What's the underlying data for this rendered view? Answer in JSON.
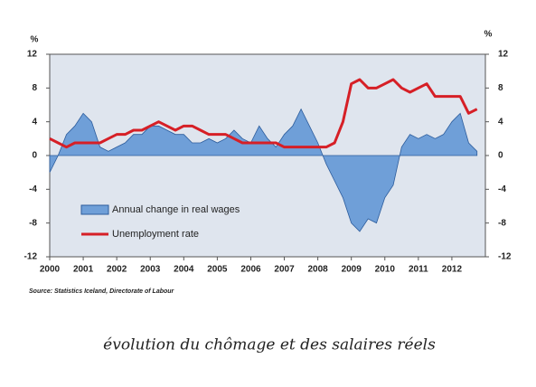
{
  "chart_data": {
    "type": "line",
    "ylabel": "%",
    "y2label": "%",
    "xlim": [
      2000,
      2013
    ],
    "xticks": [
      2000,
      2001,
      2002,
      2003,
      2004,
      2005,
      2006,
      2007,
      2008,
      2009,
      2010,
      2011,
      2012
    ],
    "ylim": [
      -12,
      12
    ],
    "yticks": [
      -12,
      -8,
      -4,
      0,
      4,
      8,
      12
    ],
    "y2lim": [
      -12,
      12
    ],
    "y2ticks": [
      -12,
      -8,
      -4,
      0,
      4,
      8,
      12
    ],
    "legend": "lower left",
    "x": [
      2000,
      2000.25,
      2000.5,
      2000.75,
      2001,
      2001.25,
      2001.5,
      2001.75,
      2002,
      2002.25,
      2002.5,
      2002.75,
      2003,
      2003.25,
      2003.5,
      2003.75,
      2004,
      2004.25,
      2004.5,
      2004.75,
      2005,
      2005.25,
      2005.5,
      2005.75,
      2006,
      2006.25,
      2006.5,
      2006.75,
      2007,
      2007.25,
      2007.5,
      2007.75,
      2008,
      2008.25,
      2008.5,
      2008.75,
      2009,
      2009.25,
      2009.5,
      2009.75,
      2010,
      2010.25,
      2010.5,
      2010.75,
      2011,
      2011.25,
      2011.5,
      2011.75,
      2012,
      2012.25,
      2012.5,
      2012.75
    ],
    "series": [
      {
        "name": "Annual change in real wages",
        "type": "area",
        "color": "#6f9fd8",
        "edge": "#2c5c9c",
        "values": [
          -2,
          0,
          2.5,
          3.5,
          5,
          4,
          1,
          0.5,
          1,
          1.5,
          2.5,
          2.5,
          3.5,
          3.5,
          3,
          2.5,
          2.5,
          1.5,
          1.5,
          2,
          1.5,
          2,
          3,
          2,
          1.5,
          3.5,
          2,
          1,
          2.5,
          3.5,
          5.5,
          3.5,
          1.5,
          -1,
          -3,
          -5,
          -8,
          -9,
          -7.5,
          -8,
          -5,
          -3.5,
          1,
          2.5,
          2,
          2.5,
          2,
          2.5,
          4,
          5,
          1.5,
          0.5
        ]
      },
      {
        "name": "Unemployment rate",
        "type": "line",
        "color": "#d61f26",
        "axis": "y2",
        "values": [
          2,
          1.5,
          1,
          1.5,
          1.5,
          1.5,
          1.5,
          2,
          2.5,
          2.5,
          3,
          3,
          3.5,
          4,
          3.5,
          3,
          3.5,
          3.5,
          3,
          2.5,
          2.5,
          2.5,
          2,
          1.5,
          1.5,
          1.5,
          1.5,
          1.5,
          1,
          1,
          1,
          1,
          1,
          1,
          1.5,
          4,
          8.5,
          9,
          8,
          8,
          8.5,
          9,
          8,
          7.5,
          8,
          8.5,
          7,
          7,
          7,
          7,
          5,
          5.5
        ]
      }
    ],
    "source": "Source: Statistics Iceland,  Directorate of Labour",
    "caption": "évolution du chômage et des salaires réels"
  }
}
